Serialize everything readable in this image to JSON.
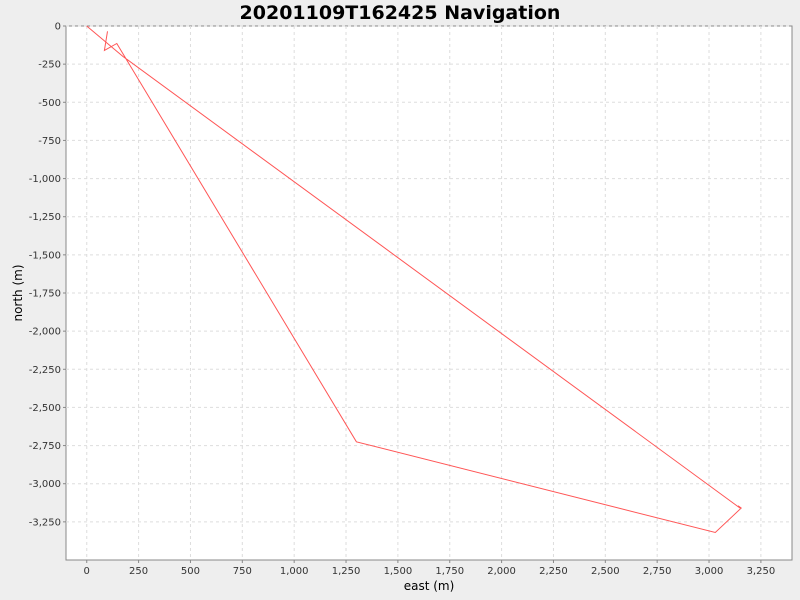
{
  "chart_data": {
    "type": "line",
    "title": "20201109T162425 Navigation",
    "xlabel": "east (m)",
    "ylabel": "north (m)",
    "xlim": [
      -100,
      3400
    ],
    "ylim": [
      -3500,
      0
    ],
    "x_ticks": [
      0,
      250,
      500,
      750,
      1000,
      1250,
      1500,
      1750,
      2000,
      2250,
      2500,
      2750,
      3000,
      3250
    ],
    "x_tick_labels": [
      "0",
      "250",
      "500",
      "750",
      "1,000",
      "1,250",
      "1,500",
      "1,750",
      "2,000",
      "2,250",
      "2,500",
      "2,750",
      "3,000",
      "3,250"
    ],
    "y_ticks": [
      0,
      -250,
      -500,
      -750,
      -1000,
      -1250,
      -1500,
      -1750,
      -2000,
      -2250,
      -2500,
      -2750,
      -3000,
      -3250
    ],
    "y_tick_labels": [
      "0",
      "-250",
      "-500",
      "-750",
      "-1,000",
      "-1,250",
      "-1,500",
      "-1,750",
      "-2,000",
      "-2,250",
      "-2,500",
      "-2,750",
      "-3,000",
      "-3,250"
    ],
    "grid": true,
    "legend": "none",
    "series": [
      {
        "color": "#ff5555",
        "x": [
          0,
          175,
          3150,
          3140,
          3155,
          3030,
          1300,
          145,
          85,
          100
        ],
        "y": [
          0,
          -200,
          -3160,
          -3145,
          -3160,
          -3320,
          -2725,
          -115,
          -160,
          -35
        ]
      }
    ]
  }
}
